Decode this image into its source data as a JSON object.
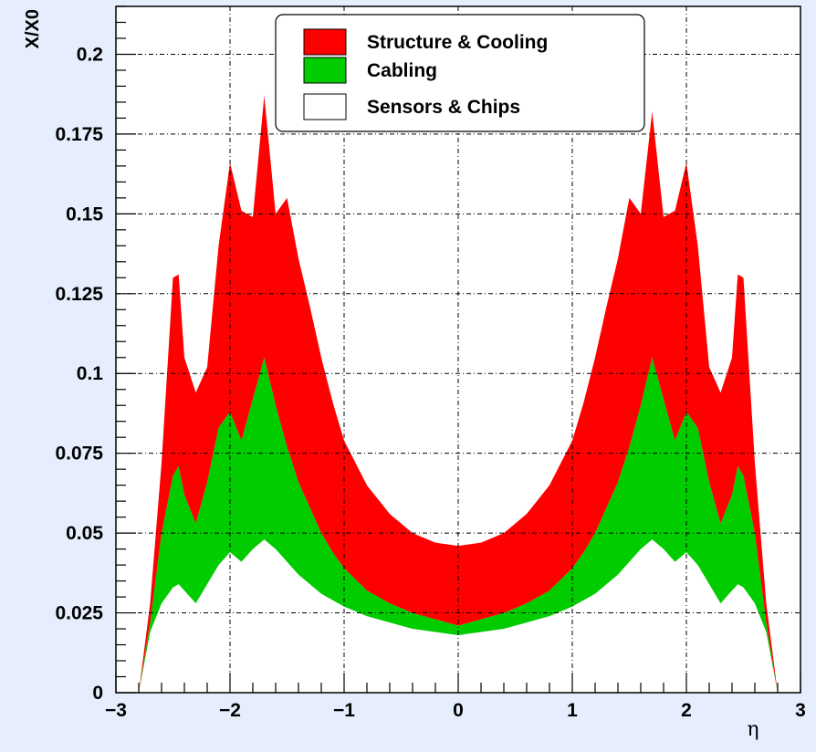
{
  "chart_data": {
    "type": "area",
    "stacked": true,
    "title": "",
    "xlabel": "η",
    "ylabel": "X/X0",
    "xlim": [
      -3,
      3
    ],
    "ylim": [
      0,
      0.215
    ],
    "grid": true,
    "legend_position": "top-center",
    "x_ticks": [
      -3,
      -2,
      -1,
      0,
      1,
      2,
      3
    ],
    "x_tick_labels": [
      "−3",
      "−2",
      "−1",
      "0",
      "1",
      "2",
      "3"
    ],
    "y_ticks": [
      0,
      0.025,
      0.05,
      0.075,
      0.1,
      0.125,
      0.15,
      0.175,
      0.2
    ],
    "y_tick_labels": [
      "0",
      "0.025",
      "0.05",
      "0.075",
      "0.1",
      "0.125",
      "0.15",
      "0.175",
      "0.2"
    ],
    "x": [
      -2.8,
      -2.7,
      -2.6,
      -2.5,
      -2.45,
      -2.4,
      -2.3,
      -2.2,
      -2.1,
      -2.0,
      -1.9,
      -1.8,
      -1.7,
      -1.6,
      -1.5,
      -1.4,
      -1.3,
      -1.2,
      -1.1,
      -1.0,
      -0.8,
      -0.6,
      -0.4,
      -0.2,
      0,
      0.2,
      0.4,
      0.6,
      0.8,
      1.0,
      1.1,
      1.2,
      1.3,
      1.4,
      1.5,
      1.6,
      1.7,
      1.8,
      1.9,
      2.0,
      2.1,
      2.2,
      2.3,
      2.4,
      2.45,
      2.5,
      2.6,
      2.7,
      2.8
    ],
    "series": [
      {
        "name": "Sensors & Chips",
        "color": "#ffffff",
        "values": [
          0,
          0.019,
          0.028,
          0.033,
          0.034,
          0.032,
          0.028,
          0.034,
          0.04,
          0.044,
          0.041,
          0.045,
          0.048,
          0.045,
          0.041,
          0.037,
          0.034,
          0.031,
          0.029,
          0.027,
          0.024,
          0.022,
          0.02,
          0.019,
          0.018,
          0.019,
          0.02,
          0.022,
          0.024,
          0.027,
          0.029,
          0.031,
          0.034,
          0.037,
          0.041,
          0.045,
          0.048,
          0.045,
          0.041,
          0.044,
          0.04,
          0.034,
          0.028,
          0.032,
          0.034,
          0.033,
          0.028,
          0.019,
          0
        ]
      },
      {
        "name": "Cabling",
        "color": "#00cc00",
        "values": [
          0,
          0.003,
          0.022,
          0.035,
          0.037,
          0.03,
          0.025,
          0.032,
          0.043,
          0.044,
          0.038,
          0.047,
          0.057,
          0.045,
          0.036,
          0.029,
          0.024,
          0.019,
          0.015,
          0.012,
          0.008,
          0.006,
          0.005,
          0.004,
          0.003,
          0.004,
          0.005,
          0.006,
          0.008,
          0.012,
          0.015,
          0.019,
          0.024,
          0.029,
          0.036,
          0.045,
          0.057,
          0.047,
          0.038,
          0.044,
          0.043,
          0.032,
          0.025,
          0.03,
          0.037,
          0.035,
          0.022,
          0.003,
          0
        ]
      },
      {
        "name": "Structure & Cooling",
        "color": "#ff0000",
        "values": [
          0,
          0.006,
          0.022,
          0.062,
          0.06,
          0.043,
          0.041,
          0.036,
          0.057,
          0.078,
          0.072,
          0.057,
          0.082,
          0.06,
          0.078,
          0.07,
          0.063,
          0.055,
          0.047,
          0.04,
          0.033,
          0.028,
          0.025,
          0.024,
          0.025,
          0.024,
          0.025,
          0.028,
          0.033,
          0.04,
          0.047,
          0.055,
          0.063,
          0.07,
          0.078,
          0.06,
          0.077,
          0.057,
          0.072,
          0.078,
          0.057,
          0.036,
          0.041,
          0.043,
          0.06,
          0.062,
          0.022,
          0.006,
          0
        ]
      }
    ],
    "legend": [
      {
        "label": "Structure & Cooling",
        "color": "#ff0000"
      },
      {
        "label": "Cabling",
        "color": "#00cc00"
      },
      {
        "label": "Sensors & Chips",
        "color": "#ffffff"
      }
    ],
    "colors": {
      "background": "#e6eefd",
      "plot_bg": "#ffffff",
      "grid": "#000000"
    }
  }
}
